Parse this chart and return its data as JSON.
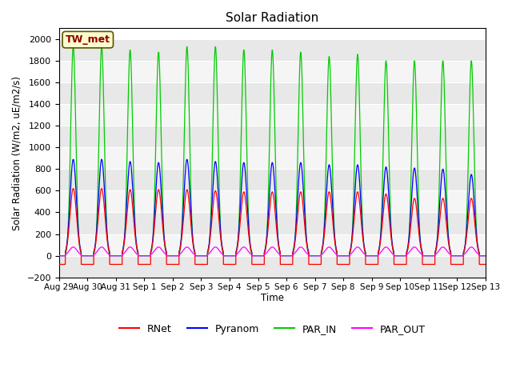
{
  "title": "Solar Radiation",
  "ylabel": "Solar Radiation (W/m2, uE/m2/s)",
  "xlabel": "Time",
  "ylim": [
    -200,
    2100
  ],
  "yticks": [
    -200,
    0,
    200,
    400,
    600,
    800,
    1000,
    1200,
    1400,
    1600,
    1800,
    2000
  ],
  "station_label": "TW_met",
  "station_label_color": "#8B0000",
  "station_label_bg": "#FFFACD",
  "station_label_border": "#8B8B00",
  "colors": {
    "RNet": "#FF0000",
    "Pyranom": "#0000FF",
    "PAR_IN": "#00CC00",
    "PAR_OUT": "#FF00FF"
  },
  "n_days": 15,
  "day_labels": [
    "Aug 29",
    "Aug 30",
    "Aug 31",
    "Sep 1",
    "Sep 2",
    "Sep 3",
    "Sep 4",
    "Sep 5",
    "Sep 6",
    "Sep 7",
    "Sep 8",
    "Sep 9",
    "Sep 10",
    "Sep 11",
    "Sep 12",
    "Sep 13"
  ],
  "peaks_PAR_IN": [
    1930,
    1930,
    1900,
    1880,
    1930,
    1930,
    1900,
    1900,
    1880,
    1840,
    1860,
    1800,
    1800,
    1800,
    1800
  ],
  "peaks_Pyranom": [
    890,
    890,
    870,
    860,
    890,
    870,
    860,
    860,
    860,
    840,
    840,
    820,
    810,
    800,
    750
  ],
  "peaks_RNet": [
    620,
    620,
    610,
    610,
    610,
    600,
    590,
    590,
    590,
    590,
    590,
    570,
    530,
    530,
    530
  ],
  "peaks_PAR_OUT": [
    80,
    80,
    80,
    80,
    80,
    80,
    80,
    80,
    80,
    80,
    80,
    80,
    80,
    80,
    80
  ],
  "night_RNet": [
    -80,
    -80,
    -80,
    -80,
    -80,
    -80,
    -80,
    -80,
    -80,
    -80,
    -80,
    -80,
    -80,
    -80,
    -80
  ],
  "band_colors": [
    "#E8E8E8",
    "#F5F5F5"
  ],
  "figsize": [
    6.4,
    4.8
  ],
  "dpi": 100
}
